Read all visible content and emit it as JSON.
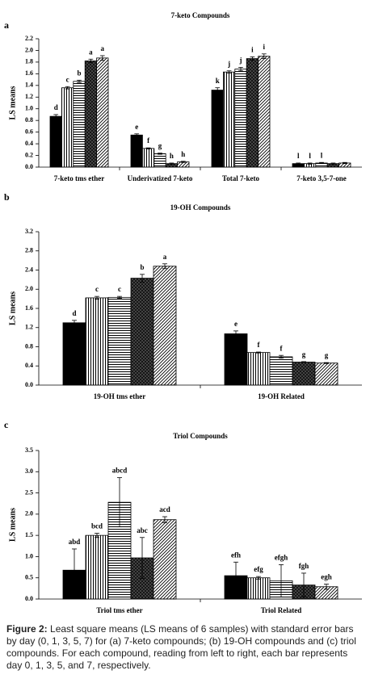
{
  "chart_data": [
    {
      "type": "bar",
      "panel": "a",
      "title": "7-keto Compounds",
      "y_label": "LS means",
      "categories": [
        "7-keto tms ether",
        "Underivatized 7-keto",
        "Total 7-keto",
        "7-keto 3,5-7-one"
      ],
      "ylim": [
        0,
        2.2
      ],
      "yticks": [
        {
          "value": 0,
          "label": "0.0"
        },
        0.2,
        0.4,
        0.6,
        0.8,
        {
          "value": 1,
          "label": "1.0"
        },
        1.2,
        1.4,
        1.6,
        1.8,
        {
          "value": 2,
          "label": "2.0"
        },
        2.2
      ],
      "series": [
        {
          "pattern": "solid",
          "color": "#000000",
          "values": [
            0.87,
            0.55,
            1.32,
            0.06
          ],
          "errors": [
            0.03,
            0.02,
            0.04,
            0.01
          ],
          "value_labels": [
            "d",
            "e",
            "k",
            "l"
          ]
        },
        {
          "pattern": "vertical",
          "color": "#000000",
          "values": [
            1.36,
            0.32,
            1.63,
            0.06
          ],
          "errors": [
            0.02,
            0.01,
            0.02,
            0.01
          ],
          "value_labels": [
            "c",
            "f",
            "j",
            "l"
          ]
        },
        {
          "pattern": "horizontal",
          "color": "#000000",
          "values": [
            1.47,
            0.23,
            1.68,
            0.07
          ],
          "errors": [
            0.02,
            0.01,
            0.03,
            0.01
          ],
          "value_labels": [
            "b",
            "g",
            "j",
            "l"
          ]
        },
        {
          "pattern": "crosshatch",
          "color": "#000000",
          "values": [
            1.82,
            0.06,
            1.86,
            0.06
          ],
          "errors": [
            0.03,
            0.01,
            0.03,
            0.01
          ],
          "value_labels": [
            "a",
            "h",
            "i",
            null
          ]
        },
        {
          "pattern": "diagonal",
          "color": "#000000",
          "values": [
            1.87,
            0.09,
            1.9,
            0.07
          ],
          "errors": [
            0.04,
            0.01,
            0.04,
            0.01
          ],
          "value_labels": [
            "a",
            "h",
            "i",
            null
          ]
        }
      ]
    },
    {
      "type": "bar",
      "panel": "b",
      "title": "19-OH Compounds",
      "y_label": "LS means",
      "categories": [
        "19-OH tms ether",
        "19-OH Related"
      ],
      "ylim": [
        0,
        3.2
      ],
      "yticks": [
        {
          "value": 0,
          "label": "0.0"
        },
        0.4,
        0.8,
        1.2,
        1.6,
        {
          "value": 2,
          "label": "2.0"
        },
        2.4,
        2.8,
        3.2
      ],
      "series": [
        {
          "pattern": "solid",
          "color": "#000000",
          "values": [
            1.3,
            1.07
          ],
          "errors": [
            0.05,
            0.06
          ],
          "value_labels": [
            "d",
            "e"
          ]
        },
        {
          "pattern": "vertical",
          "color": "#000000",
          "values": [
            1.82,
            0.68
          ],
          "errors": [
            0.03,
            0.01
          ],
          "value_labels": [
            "c",
            "f"
          ]
        },
        {
          "pattern": "horizontal",
          "color": "#000000",
          "values": [
            1.83,
            0.59
          ],
          "errors": [
            0.02,
            0.03
          ],
          "value_labels": [
            "c",
            "f"
          ]
        },
        {
          "pattern": "crosshatch",
          "color": "#000000",
          "values": [
            2.23,
            0.48
          ],
          "errors": [
            0.08,
            0.01
          ],
          "value_labels": [
            "b",
            "g"
          ]
        },
        {
          "pattern": "diagonal",
          "color": "#000000",
          "values": [
            2.48,
            0.46
          ],
          "errors": [
            0.05,
            0.01
          ],
          "value_labels": [
            "a",
            "g"
          ]
        }
      ]
    },
    {
      "type": "bar",
      "panel": "c",
      "title": "Triol Compounds",
      "y_label": "LS means",
      "categories": [
        "Triol tms ether",
        "Triol Related"
      ],
      "ylim": [
        0,
        3.5
      ],
      "yticks": [
        {
          "value": 0,
          "label": "0.0"
        },
        0.5,
        {
          "value": 1,
          "label": "1.0"
        },
        1.5,
        {
          "value": 2,
          "label": "2.0"
        },
        2.5,
        {
          "value": 3,
          "label": "3.0"
        },
        3.5
      ],
      "series": [
        {
          "pattern": "solid",
          "color": "#000000",
          "values": [
            0.68,
            0.55
          ],
          "errors": [
            0.5,
            0.32
          ],
          "value_labels": [
            "abd",
            "efh"
          ]
        },
        {
          "pattern": "vertical",
          "color": "#000000",
          "values": [
            1.5,
            0.5
          ],
          "errors": [
            0.05,
            0.03
          ],
          "value_labels": [
            "bcd",
            "efg"
          ]
        },
        {
          "pattern": "horizontal",
          "color": "#000000",
          "values": [
            2.28,
            0.43
          ],
          "errors": [
            0.58,
            0.38
          ],
          "value_labels": [
            "abcd",
            "efgh"
          ]
        },
        {
          "pattern": "crosshatch",
          "color": "#000000",
          "values": [
            0.97,
            0.33
          ],
          "errors": [
            0.48,
            0.28
          ],
          "value_labels": [
            "abc",
            "fgh"
          ]
        },
        {
          "pattern": "diagonal",
          "color": "#000000",
          "values": [
            1.87,
            0.29
          ],
          "errors": [
            0.07,
            0.06
          ],
          "value_labels": [
            "acd",
            "egh"
          ]
        }
      ]
    }
  ],
  "caption": {
    "label": "Figure 2:",
    "text": "Least square means (LS means of 6 samples) with standard error bars by day (0, 1, 3, 5, 7) for (a) 7-keto compounds; (b) 19-OH compounds and (c) triol compounds. For each compound, reading from left to right, each bar represents day 0, 1, 3, 5, and 7, respectively."
  }
}
